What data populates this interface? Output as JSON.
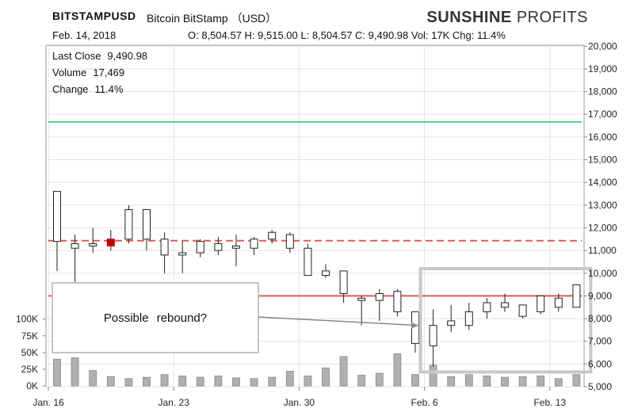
{
  "header": {
    "symbol": "BITSTAMPUSD",
    "description": "Bitcoin BitStamp （USD）",
    "date": "Feb. 14, 2018",
    "ohlc": "O: 8,504.57 H: 9,515.00 L: 8,504.57 C: 9,490.98 Vol: 17K Chg: 11.4%"
  },
  "logo": {
    "bold": "SUNSHINE",
    "light": " PROFITS"
  },
  "info": {
    "last_close_label": "Last Close",
    "last_close_value": "9,490.98",
    "volume_label": "Volume",
    "volume_value": "17,469",
    "change_label": "Change",
    "change_value": "11.4%"
  },
  "annotation": {
    "text": "Possible rebound?"
  },
  "colors": {
    "up": "#ffffff",
    "down": "#c00000",
    "green_line": "#5dcf85",
    "red_line": "#e05a5a",
    "volume": "#b0b0b0",
    "box": "#c8c8c8"
  },
  "chart_data": {
    "type": "candlestick",
    "price_axis": {
      "min": 5000,
      "max": 20000,
      "step": 1000,
      "tick_labels": [
        "5,000",
        "6,000",
        "7,000",
        "8,000",
        "9,000",
        "10,000",
        "11,000",
        "12,000",
        "13,000",
        "14,000",
        "15,000",
        "16,000",
        "17,000",
        "18,000",
        "19,000",
        "20,000"
      ]
    },
    "volume_axis": {
      "ticks": [
        0,
        25,
        50,
        75,
        100
      ],
      "tick_labels": [
        "0K",
        "25K",
        "50K",
        "75K",
        "100K"
      ]
    },
    "x_labels": [
      {
        "label": "Jan. 16",
        "index": 0
      },
      {
        "label": "Jan. 23",
        "index": 7
      },
      {
        "label": "Jan. 30",
        "index": 14
      },
      {
        "label": "Feb. 6",
        "index": 21
      },
      {
        "label": "Feb. 13",
        "index": 28
      }
    ],
    "candles": [
      {
        "o": 11400,
        "h": 13600,
        "l": 10100,
        "c": 13600
      },
      {
        "o": 11100,
        "h": 11700,
        "l": 9300,
        "c": 11300
      },
      {
        "o": 11200,
        "h": 12000,
        "l": 10900,
        "c": 11300
      },
      {
        "o": 11500,
        "h": 11900,
        "l": 11000,
        "c": 11200
      },
      {
        "o": 11500,
        "h": 13000,
        "l": 11300,
        "c": 12800
      },
      {
        "o": 11500,
        "h": 12800,
        "l": 11000,
        "c": 12800
      },
      {
        "o": 10800,
        "h": 11800,
        "l": 10000,
        "c": 11500
      },
      {
        "o": 10800,
        "h": 11400,
        "l": 10000,
        "c": 10900
      },
      {
        "o": 10900,
        "h": 11500,
        "l": 10700,
        "c": 11400
      },
      {
        "o": 11000,
        "h": 11600,
        "l": 10800,
        "c": 11300
      },
      {
        "o": 11100,
        "h": 11700,
        "l": 10300,
        "c": 11200
      },
      {
        "o": 11100,
        "h": 11600,
        "l": 10800,
        "c": 11500
      },
      {
        "o": 11500,
        "h": 11900,
        "l": 11300,
        "c": 11800
      },
      {
        "o": 11100,
        "h": 11800,
        "l": 10900,
        "c": 11700
      },
      {
        "o": 9900,
        "h": 11300,
        "l": 9900,
        "c": 11100
      },
      {
        "o": 9900,
        "h": 10400,
        "l": 9800,
        "c": 10100
      },
      {
        "o": 9100,
        "h": 10100,
        "l": 8700,
        "c": 10100
      },
      {
        "o": 8800,
        "h": 9000,
        "l": 7700,
        "c": 8900
      },
      {
        "o": 8800,
        "h": 9300,
        "l": 7900,
        "c": 9100
      },
      {
        "o": 8300,
        "h": 9300,
        "l": 8100,
        "c": 9200
      },
      {
        "o": 6900,
        "h": 8300,
        "l": 6500,
        "c": 8300
      },
      {
        "o": 6800,
        "h": 8400,
        "l": 5900,
        "c": 7700
      },
      {
        "o": 7700,
        "h": 8600,
        "l": 7400,
        "c": 7900
      },
      {
        "o": 7700,
        "h": 8700,
        "l": 7500,
        "c": 8300
      },
      {
        "o": 8300,
        "h": 8900,
        "l": 8000,
        "c": 8700
      },
      {
        "o": 8500,
        "h": 9100,
        "l": 8300,
        "c": 8700
      },
      {
        "o": 8100,
        "h": 8600,
        "l": 8000,
        "c": 8600
      },
      {
        "o": 8300,
        "h": 9000,
        "l": 8200,
        "c": 9000
      },
      {
        "o": 8500,
        "h": 9100,
        "l": 8300,
        "c": 8900
      },
      {
        "o": 8500,
        "h": 9515,
        "l": 8500,
        "c": 9491
      }
    ],
    "volume_values": [
      40,
      42,
      23,
      14,
      11,
      13,
      17,
      15,
      13,
      15,
      12,
      11,
      13,
      22,
      15,
      27,
      44,
      16,
      19,
      48,
      17,
      31,
      14,
      17,
      15,
      13,
      14,
      15,
      11,
      17
    ],
    "horizontal_lines": [
      {
        "value": 16660,
        "style": "solid",
        "color": "green"
      },
      {
        "value": 11430,
        "style": "dashed",
        "color": "red"
      },
      {
        "value": 9000,
        "style": "solid",
        "color": "red"
      }
    ],
    "highlight_box": {
      "from_index": 21,
      "to_index": 29,
      "low": 5650,
      "high": 10200
    },
    "annotation_arrow": {
      "to_index": 20,
      "value": 7700
    }
  }
}
